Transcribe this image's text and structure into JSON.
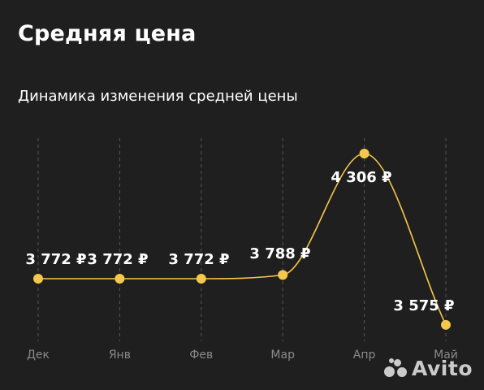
{
  "header": {
    "title": "Средняя цена",
    "subtitle": "Динамика изменения средней цены"
  },
  "colors": {
    "background": "#1f1f1f",
    "accent": "#f5c84b",
    "label": "#ffffff",
    "axis_label": "#8a8a8a",
    "grid": "#555555"
  },
  "watermark": {
    "brand": "Avito"
  },
  "chart_data": {
    "type": "line",
    "categories": [
      "Дек",
      "Янв",
      "Фев",
      "Мар",
      "Апр",
      "Май"
    ],
    "values": [
      3772,
      3772,
      3772,
      3788,
      4306,
      3575
    ],
    "labels": [
      "3 772 ₽",
      "3 772 ₽",
      "3 772 ₽",
      "3 788 ₽",
      "4 306 ₽",
      "3 575 ₽"
    ],
    "title": "Динамика изменения средней цены",
    "xlabel": "",
    "ylabel": "",
    "grid": "vertical dashed",
    "legend": "none"
  }
}
